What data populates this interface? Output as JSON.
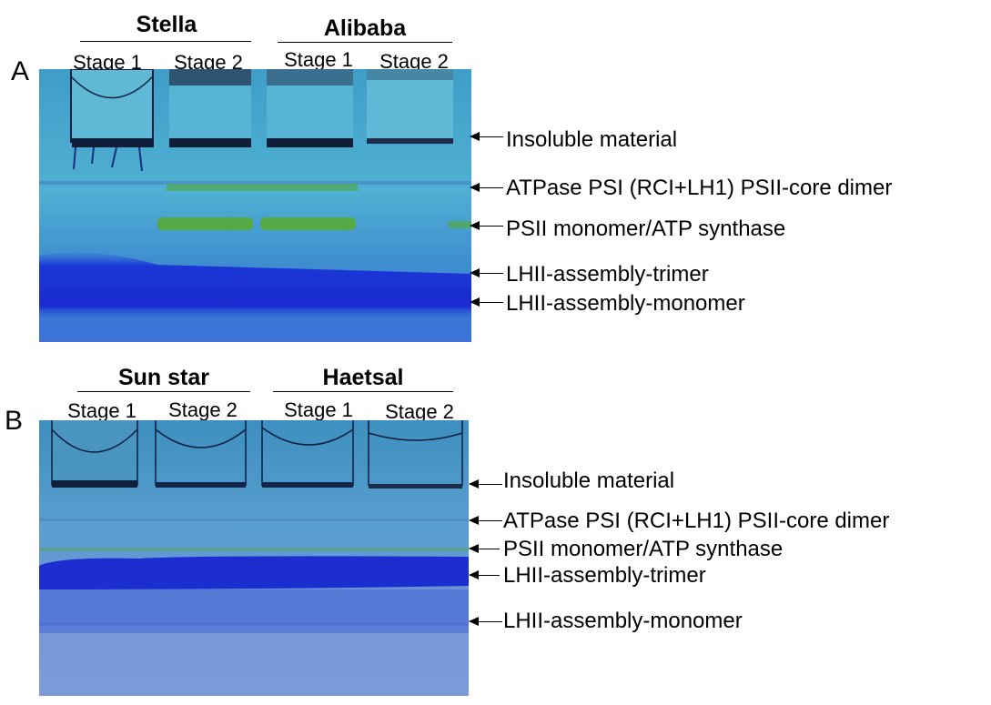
{
  "panels": [
    {
      "letter": "A",
      "groups": [
        {
          "name": "Stella",
          "lanes": [
            "Stage 1",
            "Stage 2"
          ]
        },
        {
          "name": "Alibaba",
          "lanes": [
            "Stage 1",
            "Stage 2"
          ]
        }
      ],
      "bands": [
        "Insoluble material",
        "ATPase PSI (RCI+LH1) PSII-core dimer",
        "PSII  monomer/ATP synthase",
        "LHII-assembly-trimer",
        "LHII-assembly-monomer"
      ]
    },
    {
      "letter": "B",
      "groups": [
        {
          "name": "Sun star",
          "lanes": [
            "Stage 1",
            "Stage 2"
          ]
        },
        {
          "name": "Haetsal",
          "lanes": [
            "Stage 1",
            "Stage 2"
          ]
        }
      ],
      "bands": [
        "Insoluble material",
        "ATPase PSI (RCI+LH1) PSII-core dimer",
        "PSII  monomer/ATP synthase",
        "LHII-assembly-trimer",
        "LHII-assembly-monomer"
      ]
    }
  ],
  "colors": {
    "gel_background": "#45a8cf",
    "coomassie_blue": "#1a2fd0",
    "green_band": "#4fa83a",
    "dark_band": "#0f1f3a"
  }
}
